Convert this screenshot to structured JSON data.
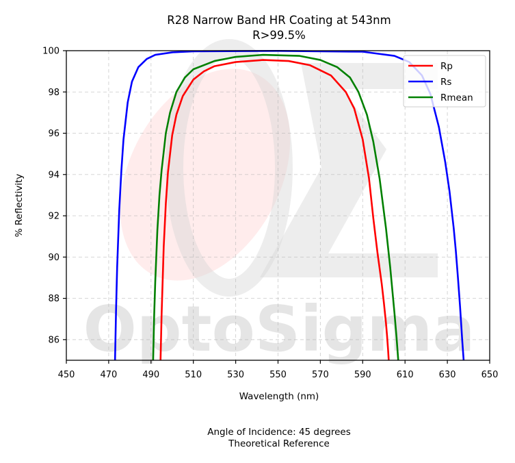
{
  "chart_data": {
    "type": "line",
    "title": [
      "R28 Narrow Band HR Coating at 543nm",
      "R>99.5%"
    ],
    "xlabel": "Wavelength (nm)",
    "ylabel": "% Reflectivity",
    "xlim": [
      450,
      650
    ],
    "ylim": [
      85,
      100
    ],
    "xticks": [
      450,
      470,
      490,
      510,
      530,
      550,
      570,
      590,
      610,
      630,
      650
    ],
    "yticks": [
      86,
      88,
      90,
      92,
      94,
      96,
      98,
      100
    ],
    "grid": true,
    "legend_position": "top-right",
    "footer": [
      "Angle of Incidence: 45 degrees",
      "Theoretical Reference"
    ],
    "watermark": "OptoSigma",
    "series": [
      {
        "name": "Rp",
        "color": "#ff0000",
        "x": [
          494.5,
          495,
          496,
          497,
          498,
          500,
          502,
          505,
          510,
          515,
          520,
          530,
          543,
          555,
          565,
          575,
          582,
          586,
          590,
          593,
          595,
          597,
          599,
          600,
          601,
          601.5,
          602,
          602.3
        ],
        "y": [
          85.0,
          87.2,
          90.5,
          92.6,
          94.1,
          95.9,
          96.9,
          97.8,
          98.6,
          99.0,
          99.25,
          99.45,
          99.55,
          99.5,
          99.3,
          98.8,
          98.0,
          97.2,
          95.7,
          93.8,
          91.9,
          90.2,
          88.7,
          87.8,
          86.8,
          86.2,
          85.5,
          85.0
        ]
      },
      {
        "name": "Rs",
        "color": "#0000ff",
        "x": [
          473,
          473.5,
          474,
          475,
          476,
          477,
          479,
          481,
          484,
          488,
          492,
          500,
          510,
          550,
          590,
          605,
          612,
          618,
          622,
          626,
          629,
          631,
          633,
          634,
          635,
          636,
          637,
          637.7
        ],
        "y": [
          85.0,
          87.5,
          89.5,
          92.3,
          94.2,
          95.7,
          97.5,
          98.5,
          99.2,
          99.6,
          99.8,
          99.92,
          99.97,
          99.99,
          99.95,
          99.75,
          99.45,
          98.8,
          97.9,
          96.3,
          94.6,
          93.2,
          91.4,
          90.3,
          89.0,
          87.6,
          86.0,
          85.0
        ]
      },
      {
        "name": "Rmean",
        "color": "#008000",
        "x": [
          491,
          491.5,
          492,
          493,
          494,
          495,
          497,
          499,
          502,
          506,
          510,
          520,
          530,
          543,
          560,
          570,
          578,
          584,
          588,
          592,
          595,
          598,
          601,
          603,
          604,
          605,
          606,
          606.8
        ],
        "y": [
          85.0,
          87.2,
          88.8,
          91.3,
          93.0,
          94.2,
          96.0,
          97.0,
          98.0,
          98.7,
          99.1,
          99.5,
          99.7,
          99.8,
          99.75,
          99.55,
          99.2,
          98.7,
          98.0,
          96.9,
          95.6,
          93.8,
          91.4,
          89.5,
          88.4,
          87.3,
          86.1,
          85.0
        ]
      }
    ]
  }
}
